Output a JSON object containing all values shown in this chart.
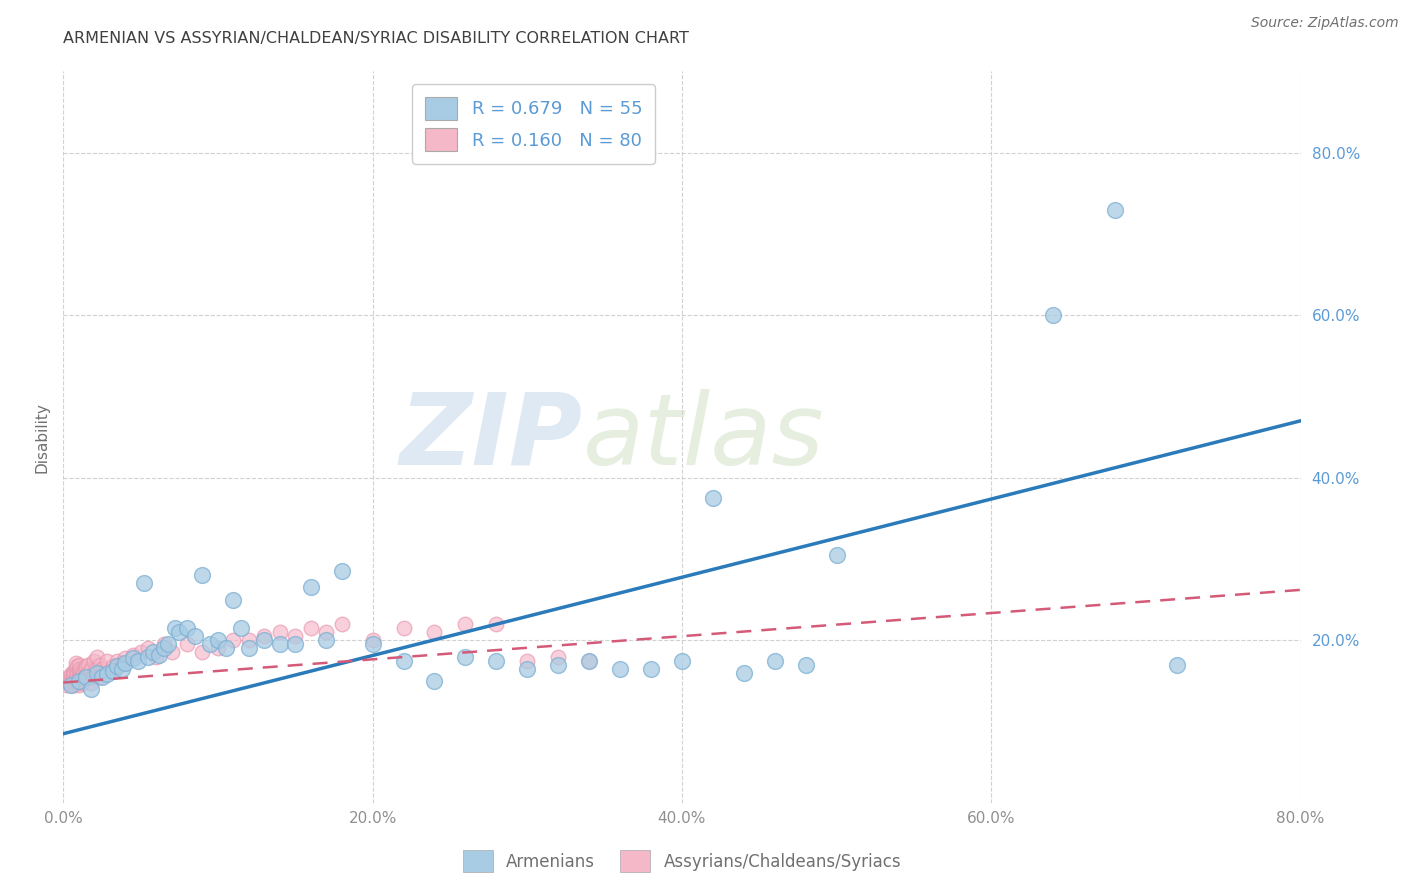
{
  "title": "ARMENIAN VS ASSYRIAN/CHALDEAN/SYRIAC DISABILITY CORRELATION CHART",
  "source": "Source: ZipAtlas.com",
  "ylabel": "Disability",
  "xlim": [
    0.0,
    0.8
  ],
  "ylim": [
    0.0,
    0.9
  ],
  "xtick_labels": [
    "0.0%",
    "20.0%",
    "40.0%",
    "60.0%",
    "80.0%"
  ],
  "xtick_vals": [
    0.0,
    0.2,
    0.4,
    0.6,
    0.8
  ],
  "ytick_labels": [
    "20.0%",
    "40.0%",
    "60.0%",
    "80.0%"
  ],
  "ytick_vals": [
    0.2,
    0.4,
    0.6,
    0.8
  ],
  "watermark_zip": "ZIP",
  "watermark_atlas": "atlas",
  "legend_blue_R": "0.679",
  "legend_blue_N": "55",
  "legend_pink_R": "0.160",
  "legend_pink_N": "80",
  "blue_color": "#a8cce4",
  "blue_edge_color": "#7bafd4",
  "pink_color": "#f4b8c8",
  "pink_edge_color": "#e896ae",
  "blue_line_color": "#2b7bba",
  "pink_line_color": "#d45a78",
  "background_color": "#ffffff",
  "grid_color": "#cccccc",
  "title_color": "#404040",
  "axis_label_color": "#707070",
  "right_tick_color": "#5b9bd5",
  "bottom_tick_color": "#909090",
  "armenian_label": "Armenians",
  "assyrian_label": "Assyrians/Chaldeans/Syriacs",
  "blue_scatter_x": [
    0.005,
    0.01,
    0.015,
    0.018,
    0.022,
    0.025,
    0.028,
    0.032,
    0.035,
    0.038,
    0.04,
    0.045,
    0.048,
    0.052,
    0.055,
    0.058,
    0.062,
    0.065,
    0.068,
    0.072,
    0.075,
    0.08,
    0.085,
    0.09,
    0.095,
    0.1,
    0.105,
    0.11,
    0.115,
    0.12,
    0.13,
    0.14,
    0.15,
    0.16,
    0.17,
    0.18,
    0.2,
    0.22,
    0.24,
    0.26,
    0.28,
    0.3,
    0.32,
    0.34,
    0.36,
    0.38,
    0.4,
    0.42,
    0.44,
    0.46,
    0.48,
    0.5,
    0.64,
    0.68,
    0.72
  ],
  "blue_scatter_y": [
    0.145,
    0.15,
    0.155,
    0.14,
    0.16,
    0.155,
    0.158,
    0.162,
    0.168,
    0.165,
    0.172,
    0.178,
    0.175,
    0.27,
    0.18,
    0.185,
    0.182,
    0.19,
    0.195,
    0.215,
    0.21,
    0.215,
    0.205,
    0.28,
    0.195,
    0.2,
    0.19,
    0.25,
    0.215,
    0.19,
    0.2,
    0.195,
    0.195,
    0.265,
    0.2,
    0.285,
    0.195,
    0.175,
    0.15,
    0.18,
    0.175,
    0.165,
    0.17,
    0.175,
    0.165,
    0.165,
    0.175,
    0.375,
    0.16,
    0.175,
    0.17,
    0.305,
    0.6,
    0.73,
    0.17
  ],
  "pink_scatter_x": [
    0.002,
    0.003,
    0.004,
    0.004,
    0.005,
    0.005,
    0.005,
    0.006,
    0.006,
    0.006,
    0.007,
    0.007,
    0.007,
    0.008,
    0.008,
    0.008,
    0.008,
    0.009,
    0.009,
    0.009,
    0.01,
    0.01,
    0.01,
    0.01,
    0.011,
    0.011,
    0.012,
    0.012,
    0.012,
    0.013,
    0.013,
    0.014,
    0.014,
    0.015,
    0.015,
    0.016,
    0.016,
    0.017,
    0.018,
    0.018,
    0.019,
    0.02,
    0.02,
    0.021,
    0.022,
    0.023,
    0.024,
    0.025,
    0.026,
    0.028,
    0.03,
    0.032,
    0.035,
    0.038,
    0.04,
    0.045,
    0.05,
    0.055,
    0.06,
    0.065,
    0.07,
    0.08,
    0.09,
    0.1,
    0.11,
    0.12,
    0.13,
    0.14,
    0.15,
    0.16,
    0.17,
    0.18,
    0.2,
    0.22,
    0.24,
    0.26,
    0.28,
    0.3,
    0.32,
    0.34
  ],
  "pink_scatter_y": [
    0.145,
    0.15,
    0.148,
    0.155,
    0.152,
    0.158,
    0.145,
    0.16,
    0.155,
    0.148,
    0.162,
    0.158,
    0.145,
    0.155,
    0.165,
    0.15,
    0.172,
    0.148,
    0.158,
    0.168,
    0.155,
    0.162,
    0.17,
    0.145,
    0.158,
    0.165,
    0.155,
    0.162,
    0.148,
    0.16,
    0.152,
    0.165,
    0.155,
    0.158,
    0.168,
    0.17,
    0.155,
    0.162,
    0.165,
    0.148,
    0.155,
    0.16,
    0.175,
    0.165,
    0.18,
    0.155,
    0.17,
    0.165,
    0.158,
    0.175,
    0.162,
    0.168,
    0.175,
    0.172,
    0.178,
    0.182,
    0.185,
    0.19,
    0.18,
    0.195,
    0.185,
    0.195,
    0.185,
    0.19,
    0.2,
    0.2,
    0.205,
    0.21,
    0.205,
    0.215,
    0.21,
    0.22,
    0.2,
    0.215,
    0.21,
    0.22,
    0.22,
    0.175,
    0.18,
    0.175
  ],
  "blue_trendline_x": [
    0.0,
    0.8
  ],
  "blue_trendline_y": [
    0.085,
    0.47
  ],
  "pink_trendline_x": [
    0.0,
    0.8
  ],
  "pink_trendline_y": [
    0.148,
    0.262
  ]
}
